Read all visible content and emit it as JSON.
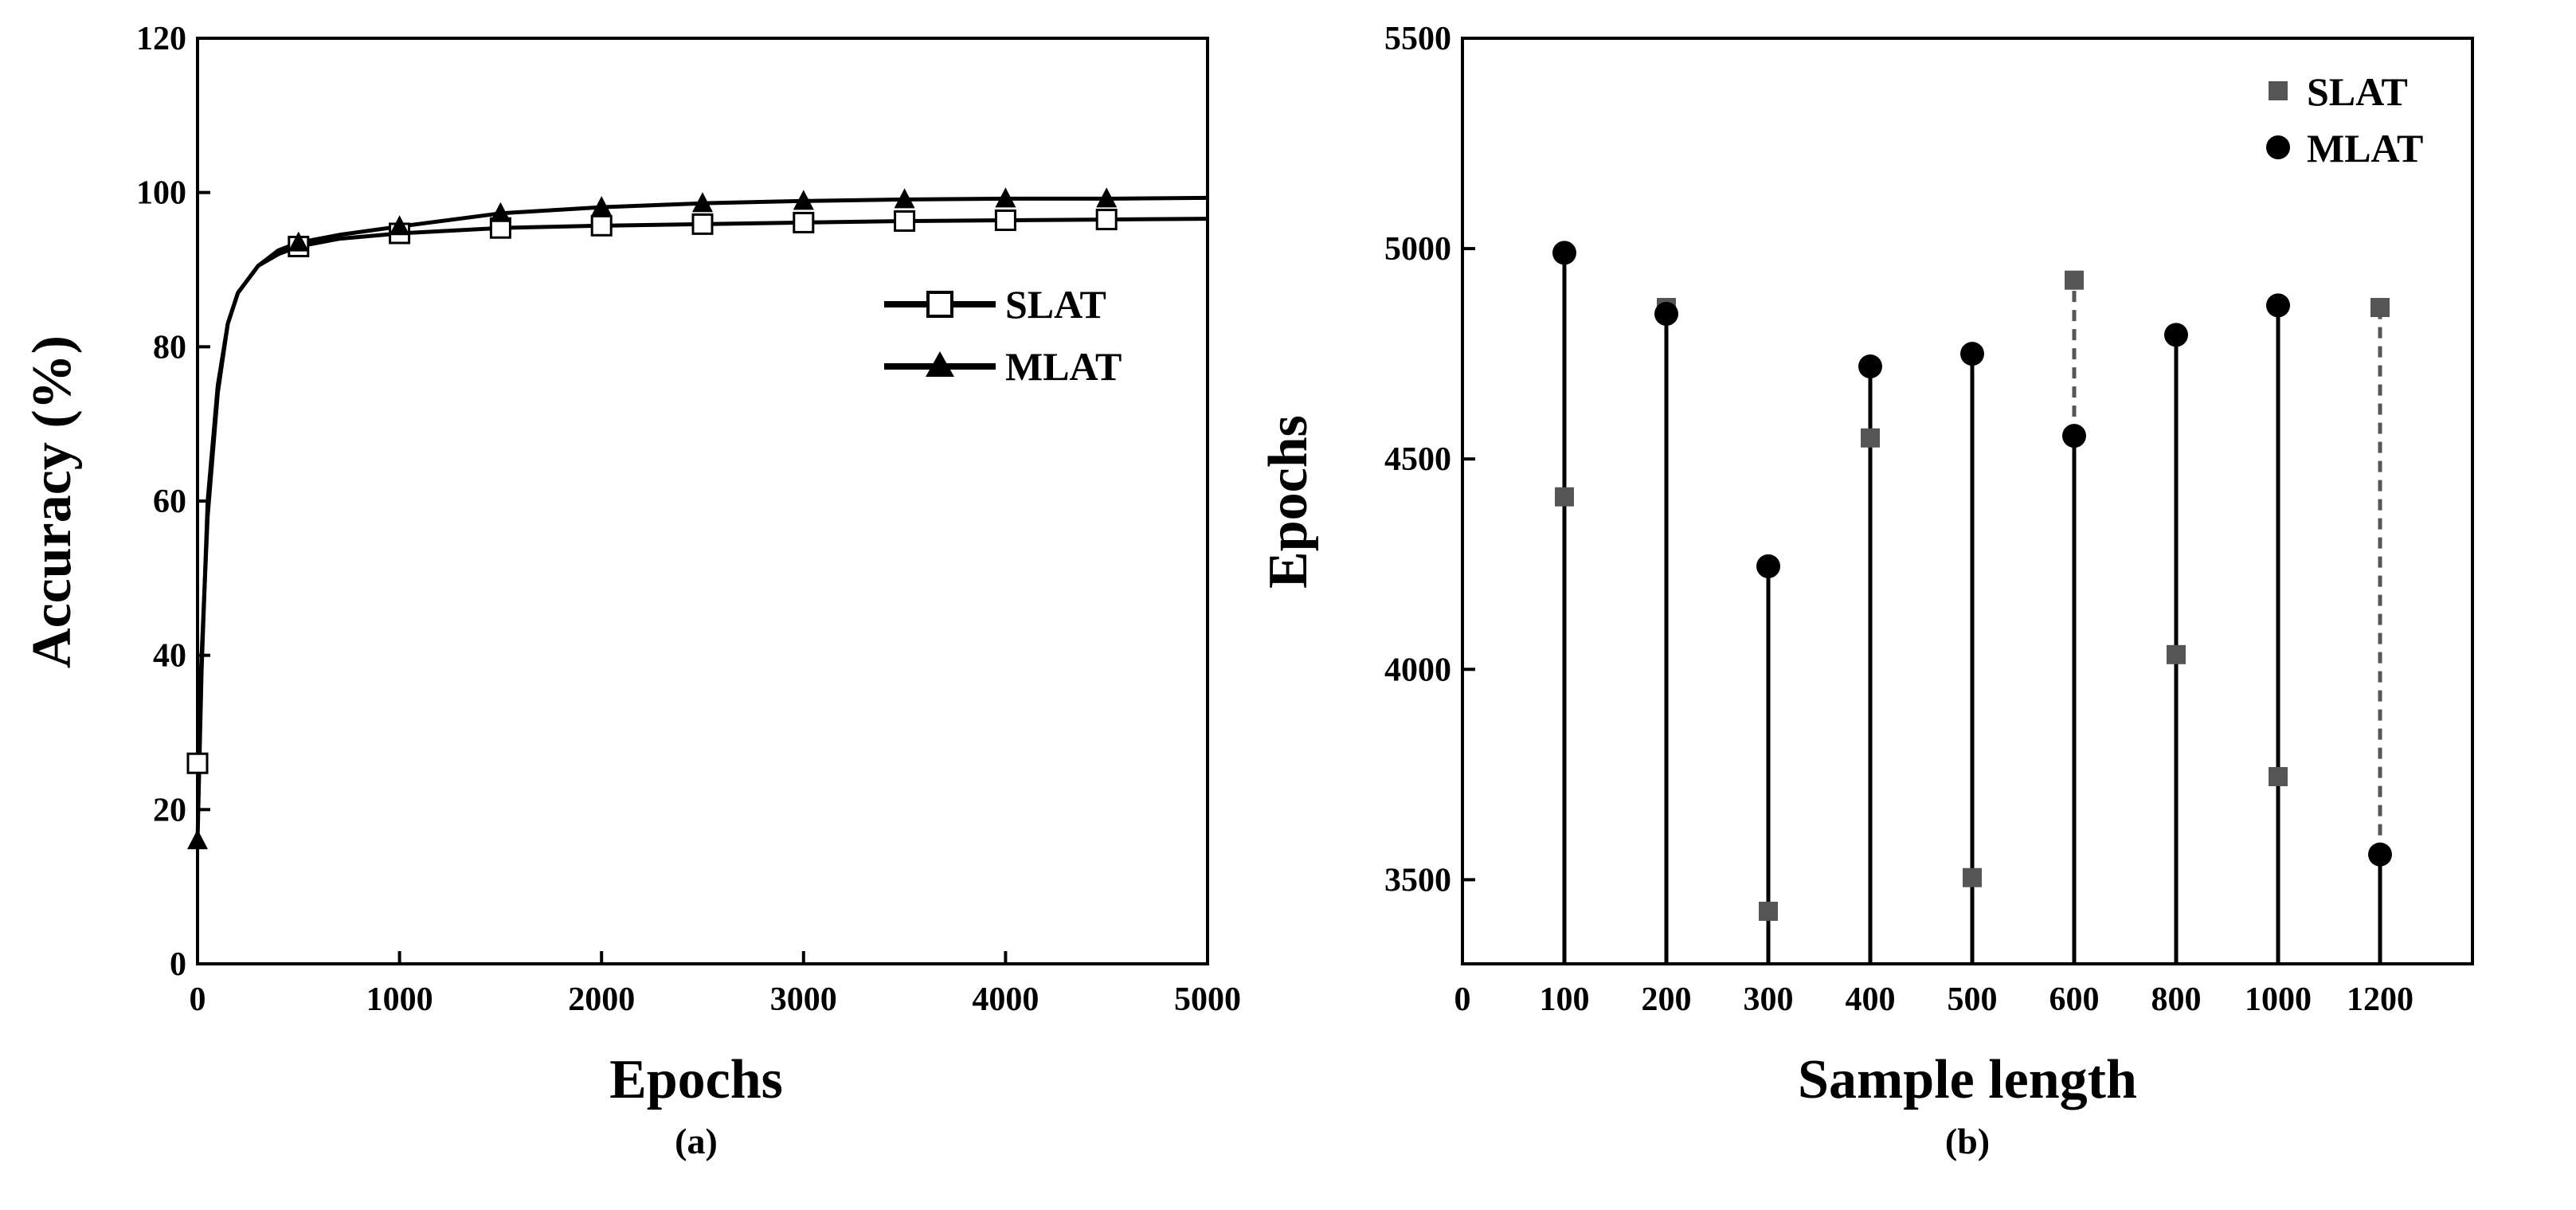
{
  "chart_data": [
    {
      "type": "line",
      "caption": "(a)",
      "xlabel": "Epochs",
      "ylabel": "Accuracy (%)",
      "xlim": [
        0,
        5000
      ],
      "ylim": [
        0,
        120
      ],
      "xticks": [
        "0",
        "1000",
        "2000",
        "3000",
        "4000",
        "5000"
      ],
      "yticks": [
        "0",
        "20",
        "40",
        "60",
        "80",
        "100",
        "120"
      ],
      "legend_position": "right",
      "series": [
        {
          "name": "SLAT",
          "marker": "open-square",
          "curve": [
            [
              0,
              26
            ],
            [
              20,
              40
            ],
            [
              50,
              58
            ],
            [
              100,
              74
            ],
            [
              150,
              83
            ],
            [
              200,
              87
            ],
            [
              300,
              90.5
            ],
            [
              400,
              92
            ],
            [
              500,
              93
            ],
            [
              700,
              94
            ],
            [
              1000,
              94.7
            ],
            [
              1500,
              95.4
            ],
            [
              2000,
              95.7
            ],
            [
              2500,
              95.9
            ],
            [
              3000,
              96.1
            ],
            [
              3500,
              96.3
            ],
            [
              4000,
              96.4
            ],
            [
              4500,
              96.5
            ],
            [
              5000,
              96.6
            ]
          ],
          "marker_points": [
            [
              0,
              26
            ],
            [
              500,
              93
            ],
            [
              1000,
              94.7
            ],
            [
              1500,
              95.4
            ],
            [
              2000,
              95.7
            ],
            [
              2500,
              95.9
            ],
            [
              3000,
              96.1
            ],
            [
              3500,
              96.3
            ],
            [
              4000,
              96.4
            ],
            [
              4500,
              96.5
            ]
          ]
        },
        {
          "name": "MLAT",
          "marker": "filled-triangle",
          "curve": [
            [
              0,
              16
            ],
            [
              20,
              38
            ],
            [
              50,
              60
            ],
            [
              100,
              75
            ],
            [
              150,
              83
            ],
            [
              200,
              87
            ],
            [
              300,
              90.5
            ],
            [
              400,
              92.5
            ],
            [
              500,
              93.5
            ],
            [
              700,
              94.5
            ],
            [
              1000,
              95.6
            ],
            [
              1500,
              97.3
            ],
            [
              2000,
              98.1
            ],
            [
              2500,
              98.6
            ],
            [
              3000,
              98.9
            ],
            [
              3500,
              99.1
            ],
            [
              4000,
              99.2
            ],
            [
              4500,
              99.2
            ],
            [
              5000,
              99.3
            ]
          ],
          "marker_points": [
            [
              0,
              16
            ],
            [
              500,
              93.5
            ],
            [
              1000,
              95.6
            ],
            [
              1500,
              97.3
            ],
            [
              2000,
              98.1
            ],
            [
              2500,
              98.6
            ],
            [
              3000,
              98.9
            ],
            [
              3500,
              99.1
            ],
            [
              4000,
              99.2
            ],
            [
              4500,
              99.2
            ]
          ]
        }
      ]
    },
    {
      "type": "scatter",
      "caption": "(b)",
      "xlabel": "Sample length",
      "ylabel": "Epochs",
      "ylim": [
        3300,
        5500
      ],
      "yticks": [
        "3500",
        "4000",
        "4500",
        "5000",
        "5500"
      ],
      "categories": [
        "0",
        "100",
        "200",
        "300",
        "400",
        "500",
        "600",
        "800",
        "1000",
        "1200"
      ],
      "legend_position": "top-right",
      "series": [
        {
          "name": "SLAT",
          "marker": "gray-square",
          "values": [
            null,
            4410,
            4860,
            3425,
            4550,
            3505,
            4925,
            4035,
            3745,
            4860
          ]
        },
        {
          "name": "MLAT",
          "marker": "black-circle",
          "values": [
            null,
            4990,
            4845,
            4245,
            4720,
            4750,
            4555,
            4795,
            4865,
            3560
          ]
        }
      ]
    }
  ]
}
